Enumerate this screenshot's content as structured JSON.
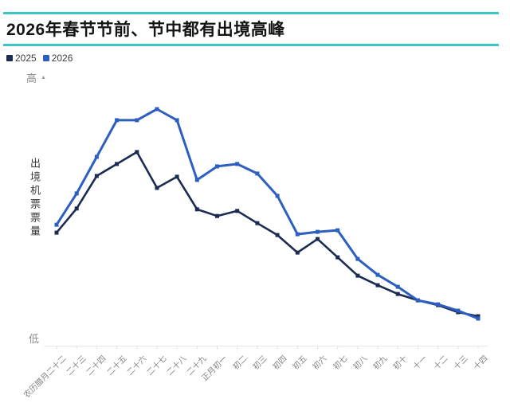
{
  "header": {
    "title": "2026年春节节前、节中都有出境高峰"
  },
  "icons": {
    "up_arrow": "▲"
  },
  "colors": {
    "accent_rule": "#3fc4c7",
    "series_2025": "#1b2b52",
    "series_2026": "#2c5fc0",
    "axis_line": "#e9e9e9",
    "tick": "#e0e0e0"
  },
  "chart_data": {
    "type": "line",
    "title": "2026年春节节前、节中都有出境高峰",
    "ylabel": "出境机票票量",
    "y_high_label": "高",
    "y_low_label": "低",
    "y_axis_note": "qualitative relative volume scale, 低=0 to 高=100",
    "ylim": [
      0,
      100
    ],
    "grid": false,
    "legend_position": "top-left",
    "marker": "square",
    "categories": [
      "农历腊月二十二",
      "二十三",
      "二十四",
      "二十五",
      "二十六",
      "二十七",
      "二十八",
      "二十九",
      "正月初一",
      "初二",
      "初三",
      "初四",
      "初五",
      "初六",
      "初七",
      "初八",
      "初九",
      "初十",
      "十一",
      "十二",
      "十三",
      "十四"
    ],
    "series": [
      {
        "name": "2025",
        "color": "#1b2b52",
        "values": [
          42.3,
          51.4,
          63.7,
          68.2,
          72.7,
          59.2,
          63.4,
          51.1,
          48.6,
          50.5,
          45.9,
          41.4,
          34.8,
          39.9,
          33.0,
          26.1,
          22.5,
          19.2,
          16.8,
          15.0,
          12.3,
          10.8
        ]
      },
      {
        "name": "2026",
        "color": "#2c5fc0",
        "values": [
          45.3,
          57.1,
          70.9,
          84.7,
          84.7,
          88.9,
          84.7,
          62.2,
          67.3,
          68.2,
          64.6,
          56.2,
          41.7,
          42.6,
          43.2,
          32.4,
          26.4,
          21.9,
          16.8,
          15.3,
          12.9,
          9.9
        ]
      }
    ]
  }
}
